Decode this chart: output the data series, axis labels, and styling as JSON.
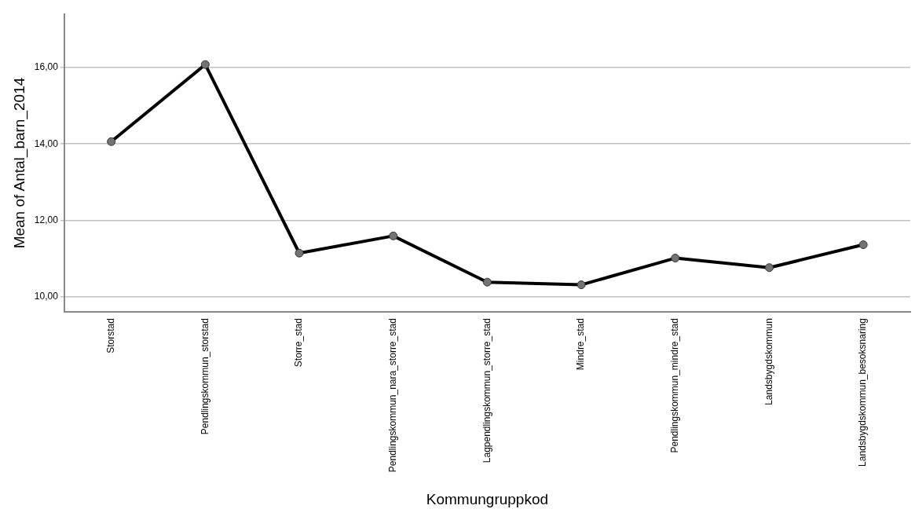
{
  "chart_data": {
    "type": "line",
    "xlabel": "Kommungruppkod",
    "ylabel": "Mean of Antal_barn_2014",
    "categories": [
      "Storstad",
      "Pendlingskommun_storstad",
      "Storre_stad",
      "Pendlingskommun_nara_storre_stad",
      "Lagpendlingskommun_storre_stad",
      "Mindre_stad",
      "Pendlingskommun_mindre_stad",
      "Landsbygdskommun",
      "Landsbygdskommun_besoksnaring"
    ],
    "series": [
      {
        "color": "#000000",
        "values": [
          14.06,
          16.08,
          11.14,
          11.59,
          10.38,
          10.31,
          11.01,
          10.76,
          11.36
        ]
      }
    ],
    "ylim": [
      9.6,
      17.4
    ],
    "yticks": [
      {
        "value": 10,
        "label": "10,00"
      },
      {
        "value": 12,
        "label": "12,00"
      },
      {
        "value": 14,
        "label": "14,00"
      },
      {
        "value": 16,
        "label": "16,00"
      }
    ],
    "grid": "y",
    "legend": false,
    "marker": "circle",
    "line_style": "solid"
  }
}
